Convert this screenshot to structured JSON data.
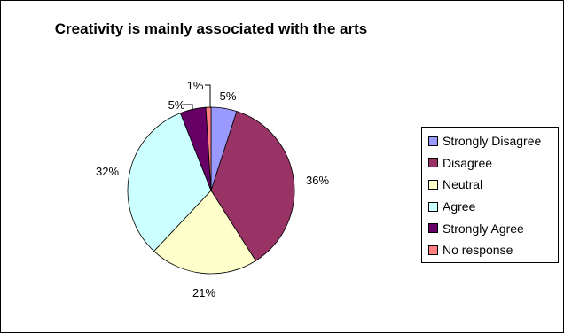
{
  "chart_data": {
    "type": "pie",
    "title": "Creativity is mainly associated with the arts",
    "categories": [
      "Strongly Disagree",
      "Disagree",
      "Neutral",
      "Agree",
      "Strongly Agree",
      "No response"
    ],
    "values": [
      5,
      36,
      21,
      32,
      5,
      1
    ],
    "unit": "%",
    "value_labels": [
      "5%",
      "36%",
      "21%",
      "32%",
      "5%",
      "1%"
    ],
    "colors": [
      "#9999ff",
      "#993366",
      "#ffffcc",
      "#ccffff",
      "#660066",
      "#ff8080"
    ],
    "legend_placement": "right",
    "start_angle_deg": 0,
    "direction": "clockwise"
  }
}
